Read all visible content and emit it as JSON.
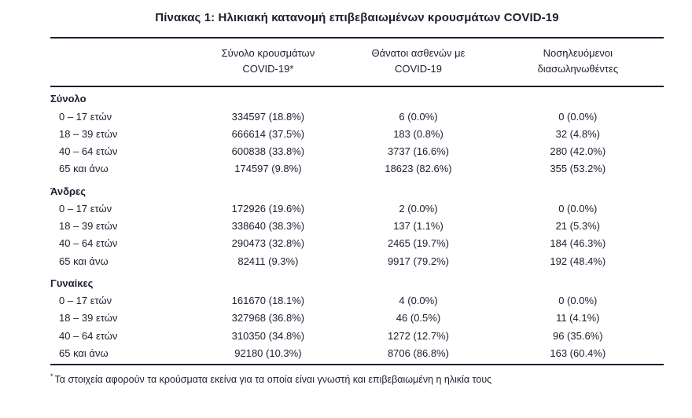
{
  "title": "Πίνακας 1: Ηλικιακή κατανομή επιβεβαιωμένων κρουσμάτων COVID-19",
  "colors": {
    "text": "#1e1e30",
    "background": "#ffffff"
  },
  "table": {
    "columns": [
      {
        "line1": "Σύνολο κρουσμάτων",
        "line2": "COVID-19*"
      },
      {
        "line1": "Θάνατοι ασθενών με",
        "line2": "COVID-19"
      },
      {
        "line1": "Νοσηλευόμενοι",
        "line2": "διασωληνωθέντες"
      }
    ],
    "sections": [
      {
        "name": "Σύνολο",
        "rows": [
          {
            "label": "0 – 17 ετών",
            "cases": "334597 (18.8%)",
            "deaths": "6 (0.0%)",
            "intubated": "0 (0.0%)"
          },
          {
            "label": "18 – 39 ετών",
            "cases": "666614 (37.5%)",
            "deaths": "183 (0.8%)",
            "intubated": "32 (4.8%)"
          },
          {
            "label": "40 – 64 ετών",
            "cases": "600838 (33.8%)",
            "deaths": "3737 (16.6%)",
            "intubated": "280 (42.0%)"
          },
          {
            "label": "65 και άνω",
            "cases": "174597 (9.8%)",
            "deaths": "18623 (82.6%)",
            "intubated": "355 (53.2%)"
          }
        ]
      },
      {
        "name": "Άνδρες",
        "rows": [
          {
            "label": "0 – 17 ετών",
            "cases": "172926 (19.6%)",
            "deaths": "2 (0.0%)",
            "intubated": "0 (0.0%)"
          },
          {
            "label": "18 – 39 ετών",
            "cases": "338640 (38.3%)",
            "deaths": "137 (1.1%)",
            "intubated": "21 (5.3%)"
          },
          {
            "label": "40 – 64 ετών",
            "cases": "290473 (32.8%)",
            "deaths": "2465 (19.7%)",
            "intubated": "184 (46.3%)"
          },
          {
            "label": "65 και άνω",
            "cases": "82411 (9.3%)",
            "deaths": "9917 (79.2%)",
            "intubated": "192 (48.4%)"
          }
        ]
      },
      {
        "name": "Γυναίκες",
        "rows": [
          {
            "label": "0 – 17 ετών",
            "cases": "161670 (18.1%)",
            "deaths": "4 (0.0%)",
            "intubated": "0 (0.0%)"
          },
          {
            "label": "18 – 39 ετών",
            "cases": "327968 (36.8%)",
            "deaths": "46 (0.5%)",
            "intubated": "11 (4.1%)"
          },
          {
            "label": "40 – 64 ετών",
            "cases": "310350 (34.8%)",
            "deaths": "1272 (12.7%)",
            "intubated": "96 (35.6%)"
          },
          {
            "label": "65 και άνω",
            "cases": "92180 (10.3%)",
            "deaths": "8706 (86.8%)",
            "intubated": "163 (60.4%)"
          }
        ]
      }
    ]
  },
  "footnote": {
    "marker": "*",
    "text": "Τα στοιχεία αφορούν τα κρούσματα εκείνα για τα οποία είναι γνωστή και επιβεβαιωμένη η ηλικία τους"
  }
}
